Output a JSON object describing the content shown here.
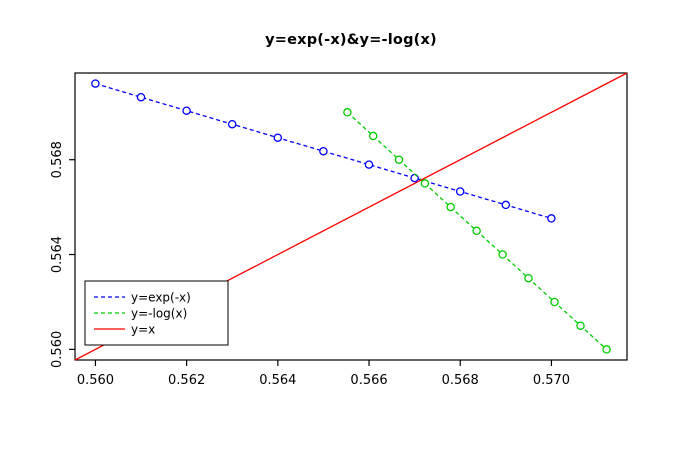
{
  "chart_data": {
    "type": "line",
    "title": "y=exp(-x)&y=-log(x)",
    "xlabel": "",
    "ylabel": "",
    "xlim": [
      0.5595516,
      0.5716574
    ],
    "ylim": [
      0.5595516,
      0.5716574
    ],
    "x_tick_values": [
      0.56,
      0.562,
      0.564,
      0.566,
      0.568,
      0.57
    ],
    "x_tick_labels": [
      "0.560",
      "0.562",
      "0.564",
      "0.566",
      "0.568",
      "0.570"
    ],
    "y_tick_values": [
      0.56,
      0.564,
      0.568
    ],
    "y_tick_labels": [
      "0.560",
      "0.564",
      "0.568"
    ],
    "grid": false,
    "legend_position": "bottom-left",
    "series": [
      {
        "name": "y=exp(-x)",
        "color": "#0000FF",
        "line_style": "dashed",
        "marker": "circle",
        "x": [
          0.56,
          0.561,
          0.562,
          0.563,
          0.564,
          0.565,
          0.566,
          0.567,
          0.568,
          0.569,
          0.57
        ],
        "y": [
          0.571209,
          0.570638,
          0.570068,
          0.569498,
          0.568929,
          0.56836,
          0.567792,
          0.567225,
          0.566658,
          0.566092,
          0.565525
        ]
      },
      {
        "name": "y=-log(x)",
        "color": "#00CD00",
        "line_style": "dashed",
        "marker": "circle",
        "x": [
          0.565525,
          0.566092,
          0.566658,
          0.567225,
          0.567792,
          0.56836,
          0.568929,
          0.569498,
          0.570068,
          0.570638,
          0.571209
        ],
        "y": [
          0.57,
          0.569,
          0.568,
          0.567,
          0.566,
          0.565,
          0.564,
          0.563,
          0.562,
          0.561,
          0.56
        ]
      },
      {
        "name": "y=x",
        "color": "#FF0000",
        "line_style": "solid",
        "marker": "none",
        "x": [
          0.5595516,
          0.5716574
        ],
        "y": [
          0.5595516,
          0.5716574
        ]
      }
    ]
  }
}
